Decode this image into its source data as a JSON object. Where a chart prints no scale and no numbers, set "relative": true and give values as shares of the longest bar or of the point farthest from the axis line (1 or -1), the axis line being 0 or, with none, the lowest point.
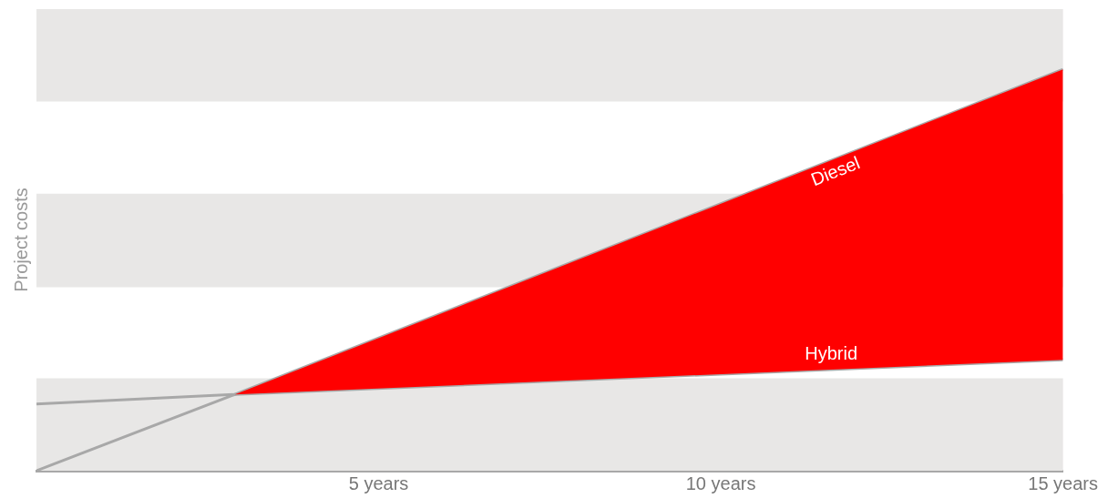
{
  "chart_data": {
    "type": "line",
    "relative": true,
    "ylabel": "Project costs",
    "xlim": [
      0,
      15
    ],
    "xticks": [
      {
        "value": 5,
        "label": "5 years"
      },
      {
        "value": 10,
        "label": "10 years"
      },
      {
        "value": 15,
        "label": "15 years"
      }
    ],
    "bands": [
      {
        "axis": "y",
        "from": 0,
        "to": 0.23,
        "color": "#e8e7e6"
      },
      {
        "axis": "y",
        "from": 0.457,
        "to": 0.69,
        "color": "#e8e7e6"
      },
      {
        "axis": "y",
        "from": 0.92,
        "to": 1.15,
        "color": "#e8e7e6"
      }
    ],
    "series": [
      {
        "name": "Diesel",
        "color": "#a8a8a8",
        "x": [
          0,
          2.9,
          15
        ],
        "values": [
          0,
          0.19,
          1
        ],
        "lower": [
          null,
          0.19,
          0.276
        ],
        "upper": [
          null,
          0.19,
          1
        ]
      },
      {
        "name": "Hybrid",
        "color": "#a8a8a8",
        "x": [
          0,
          2.9,
          15
        ],
        "values": [
          0.166,
          0.19,
          0.276
        ]
      }
    ]
  }
}
